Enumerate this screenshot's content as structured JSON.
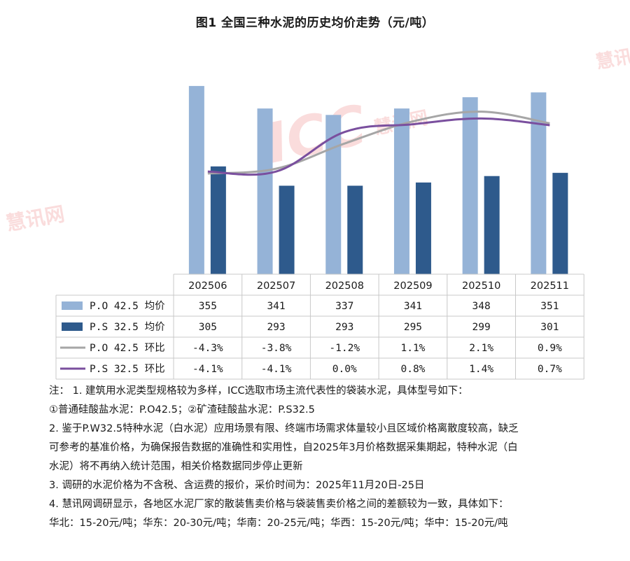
{
  "title": "图1 全国三种水泥的历史均价走势（元/吨）",
  "chart_data": {
    "type": "bar+line",
    "categories": [
      "202506",
      "202507",
      "202508",
      "202509",
      "202510",
      "202511"
    ],
    "series": [
      {
        "name": "P.O 42.5 均价",
        "kind": "bar",
        "color": "#95b3d7",
        "values": [
          355,
          341,
          337,
          341,
          348,
          351
        ],
        "labels": [
          "355",
          "341",
          "337",
          "341",
          "348",
          "351"
        ]
      },
      {
        "name": "P.S 32.5 均价",
        "kind": "bar",
        "color": "#2e5a8c",
        "values": [
          305,
          293,
          293,
          295,
          299,
          301
        ],
        "labels": [
          "305",
          "293",
          "293",
          "295",
          "299",
          "301"
        ]
      },
      {
        "name": "P.O 42.5 环比",
        "kind": "line",
        "color": "#a6a6a6",
        "values": [
          -4.3,
          -3.8,
          -1.2,
          1.1,
          2.1,
          0.9
        ],
        "labels": [
          "-4.3%",
          "-3.8%",
          "-1.2%",
          "1.1%",
          "2.1%",
          "0.9%"
        ]
      },
      {
        "name": "P.S 32.5 环比",
        "kind": "line",
        "color": "#7a4f9e",
        "values": [
          -4.1,
          -4.1,
          0.0,
          0.8,
          1.4,
          0.7
        ],
        "labels": [
          "-4.1%",
          "-4.1%",
          "0.0%",
          "0.8%",
          "1.4%",
          "0.7%"
        ]
      }
    ],
    "legend": "data-table"
  },
  "notes": [
    "注： 1. 建筑用水泥类型规格较为多样，ICC选取市场主流代表性的袋装水泥，具体型号如下：",
    "①普通硅酸盐水泥：P.O42.5；②矿渣硅酸盐水泥：P.S32.5",
    "2. 鉴于P.W32.5特种水泥（白水泥）应用场景有限、终端市场需求体量较小且区域价格离散度较高，缺乏",
    "可参考的基准价格，为确保报告数据的准确性和实用性，自2025年3月价格数据采集期起，特种水泥（白",
    "水泥）将不再纳入统计范围，相关价格数据同步停止更新",
    "3. 调研的水泥价格为不含税、含运费的报价，采价时间为：2025年11月20日-25日",
    "4. 慧讯网调研显示，各地区水泥厂家的散装售卖价格与袋装售卖价格之间的差额较为一致，具体如下：",
    "华北：15-20元/吨；华东：20-30元/吨；华南：20-25元/吨；华西：15-20元/吨；华中：15-20元/吨"
  ],
  "watermark": {
    "logo_text": "ICC",
    "brand_text": "慧讯网"
  }
}
